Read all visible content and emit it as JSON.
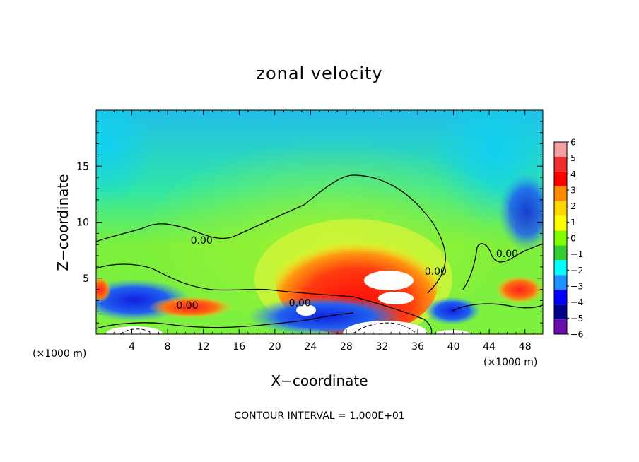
{
  "chart_data": {
    "type": "heatmap",
    "title": "zonal velocity",
    "xlabel": "X−coordinate",
    "ylabel": "Z−coordinate",
    "x_unit_left": "(×1000 m)",
    "x_unit_right": "(×1000 m)",
    "xlim": [
      0,
      50
    ],
    "ylim": [
      0,
      20
    ],
    "xticks": [
      4,
      8,
      12,
      16,
      20,
      24,
      28,
      32,
      36,
      40,
      44,
      48
    ],
    "yticks": [
      5,
      10,
      15
    ],
    "footnote": "CONTOUR INTERVAL = 1.000E+01",
    "colorbar": {
      "levels": [
        6,
        5,
        4,
        3,
        2,
        1,
        0,
        -1,
        -2,
        -3,
        -4,
        -5,
        -6
      ],
      "labels": [
        "6",
        "5",
        "4",
        "3",
        "2",
        "1",
        "0",
        "−1",
        "−2",
        "−3",
        "−4",
        "−5",
        "−6"
      ],
      "colors": [
        "#f4a0a0",
        "#ee2c2c",
        "#ff0000",
        "#ff8c00",
        "#ffd700",
        "#ffff00",
        "#7fff00",
        "#32cd32",
        "#00ffff",
        "#1e90ff",
        "#0000ff",
        "#00008b",
        "#6a0dad"
      ]
    },
    "contour_labels": [
      {
        "text": "0.00",
        "x": 11.8,
        "z": 8.4
      },
      {
        "text": "0.00",
        "x": 10.2,
        "z": 2.6
      },
      {
        "text": "0.00",
        "x": 22.8,
        "z": 2.8
      },
      {
        "text": "0.00",
        "x": 38.0,
        "z": 5.6
      },
      {
        "text": "0.00",
        "x": 46.0,
        "z": 7.2
      }
    ]
  }
}
